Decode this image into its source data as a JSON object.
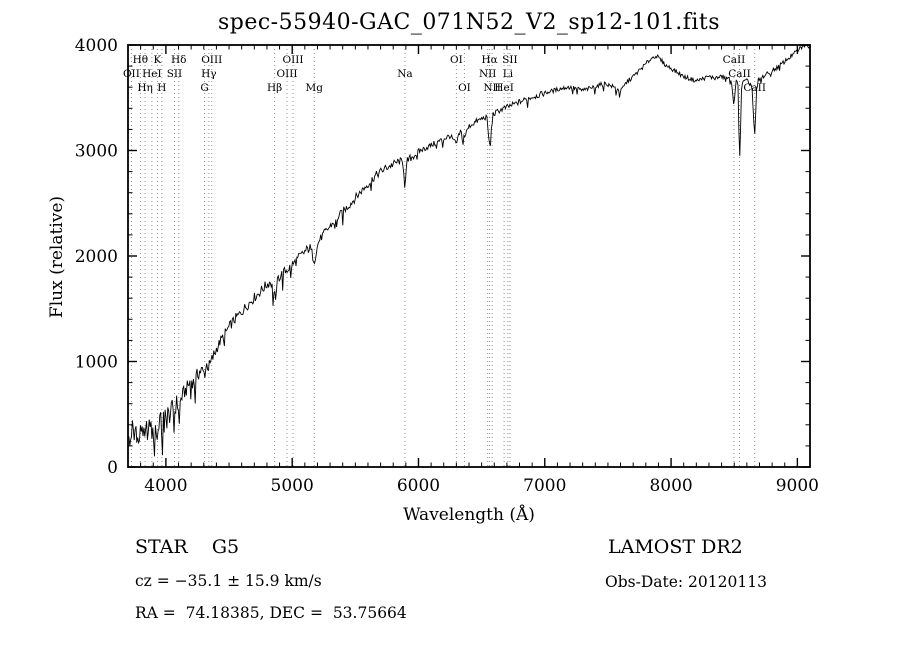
{
  "chart_data": {
    "type": "line",
    "title": "spec-55940-GAC_071N52_V2_sp12-101.fits",
    "xlabel": "Wavelength (Å)",
    "ylabel": "Flux (relative)",
    "xlim": [
      3700,
      9100
    ],
    "ylim": [
      0,
      4000
    ],
    "xticks": [
      4000,
      5000,
      6000,
      7000,
      8000,
      9000
    ],
    "yticks": [
      0,
      1000,
      2000,
      3000,
      4000
    ],
    "minor_x_step": 100,
    "minor_y_step": 200,
    "grid": false,
    "line_color": "#000000",
    "marker_line_color": "#909090",
    "spectral_lines": [
      {
        "label": "Hθ",
        "wavelength": 3798,
        "row": 0
      },
      {
        "label": "K",
        "wavelength": 3933,
        "row": 0
      },
      {
        "label": "Hδ",
        "wavelength": 4102,
        "row": 0
      },
      {
        "label": "OIII",
        "wavelength": 4363,
        "row": 0
      },
      {
        "label": "OIII",
        "wavelength": 5007,
        "row": 0
      },
      {
        "label": "OI",
        "wavelength": 6300,
        "row": 0
      },
      {
        "label": "Hα",
        "wavelength": 6563,
        "row": 0
      },
      {
        "label": "SII",
        "wavelength": 6724,
        "row": 0
      },
      {
        "label": "CaII",
        "wavelength": 8498,
        "row": 0
      },
      {
        "label": "OII",
        "wavelength": 3727,
        "row": 1
      },
      {
        "label": "HeI",
        "wavelength": 3889,
        "row": 1
      },
      {
        "label": "SII",
        "wavelength": 4068,
        "row": 1
      },
      {
        "label": "Hγ",
        "wavelength": 4340,
        "row": 1
      },
      {
        "label": "OIII",
        "wavelength": 4959,
        "row": 1
      },
      {
        "label": "Na",
        "wavelength": 5893,
        "row": 1
      },
      {
        "label": "NII",
        "wavelength": 6548,
        "row": 1
      },
      {
        "label": "Li",
        "wavelength": 6708,
        "row": 1
      },
      {
        "label": "CaII",
        "wavelength": 8542,
        "row": 1
      },
      {
        "label": "Hη",
        "wavelength": 3835,
        "row": 2
      },
      {
        "label": "H",
        "wavelength": 3968,
        "row": 2
      },
      {
        "label": "G",
        "wavelength": 4306,
        "row": 2
      },
      {
        "label": "Hβ",
        "wavelength": 4861,
        "row": 2
      },
      {
        "label": "Mg",
        "wavelength": 5175,
        "row": 2
      },
      {
        "label": "OI",
        "wavelength": 6364,
        "row": 2
      },
      {
        "label": "NII",
        "wavelength": 6583,
        "row": 2
      },
      {
        "label": "HeI",
        "wavelength": 6678,
        "row": 2
      },
      {
        "label": "CaII",
        "wavelength": 8662,
        "row": 2
      }
    ],
    "noise_regions": [
      [
        3700,
        4000,
        115
      ],
      [
        4000,
        4400,
        85
      ],
      [
        4400,
        5200,
        60
      ],
      [
        5200,
        6000,
        48
      ],
      [
        6000,
        7000,
        34
      ],
      [
        7000,
        9100,
        26
      ]
    ],
    "series": [
      {
        "name": "spectrum",
        "points": [
          [
            3700,
            340
          ],
          [
            3712,
            170
          ],
          [
            3724,
            300
          ],
          [
            3736,
            390
          ],
          [
            3748,
            240
          ],
          [
            3760,
            410
          ],
          [
            3772,
            300
          ],
          [
            3784,
            210
          ],
          [
            3798,
            330
          ],
          [
            3812,
            400
          ],
          [
            3825,
            290
          ],
          [
            3835,
            240
          ],
          [
            3848,
            380
          ],
          [
            3860,
            300
          ],
          [
            3875,
            430
          ],
          [
            3889,
            330
          ],
          [
            3900,
            280
          ],
          [
            3915,
            400
          ],
          [
            3933,
            260
          ],
          [
            3945,
            430
          ],
          [
            3955,
            480
          ],
          [
            3968,
            330
          ],
          [
            3980,
            470
          ],
          [
            3995,
            520
          ],
          [
            4010,
            540
          ],
          [
            4030,
            470
          ],
          [
            4050,
            580
          ],
          [
            4068,
            500
          ],
          [
            4085,
            620
          ],
          [
            4102,
            540
          ],
          [
            4120,
            650
          ],
          [
            4140,
            700
          ],
          [
            4160,
            730
          ],
          [
            4180,
            780
          ],
          [
            4200,
            830
          ],
          [
            4227,
            790
          ],
          [
            4250,
            880
          ],
          [
            4280,
            920
          ],
          [
            4306,
            880
          ],
          [
            4325,
            980
          ],
          [
            4340,
            940
          ],
          [
            4363,
            1010
          ],
          [
            4400,
            1120
          ],
          [
            4440,
            1210
          ],
          [
            4480,
            1290
          ],
          [
            4520,
            1360
          ],
          [
            4560,
            1420
          ],
          [
            4600,
            1470
          ],
          [
            4640,
            1530
          ],
          [
            4680,
            1580
          ],
          [
            4720,
            1630
          ],
          [
            4760,
            1680
          ],
          [
            4800,
            1730
          ],
          [
            4830,
            1760
          ],
          [
            4861,
            1620
          ],
          [
            4890,
            1790
          ],
          [
            4920,
            1830
          ],
          [
            4959,
            1870
          ],
          [
            5007,
            1920
          ],
          [
            5050,
            1980
          ],
          [
            5100,
            2040
          ],
          [
            5140,
            2080
          ],
          [
            5175,
            1960
          ],
          [
            5210,
            2140
          ],
          [
            5250,
            2210
          ],
          [
            5300,
            2280
          ],
          [
            5350,
            2350
          ],
          [
            5400,
            2420
          ],
          [
            5450,
            2480
          ],
          [
            5500,
            2550
          ],
          [
            5550,
            2620
          ],
          [
            5600,
            2680
          ],
          [
            5650,
            2750
          ],
          [
            5700,
            2800
          ],
          [
            5750,
            2840
          ],
          [
            5800,
            2870
          ],
          [
            5850,
            2900
          ],
          [
            5880,
            2880
          ],
          [
            5893,
            2640
          ],
          [
            5910,
            2900
          ],
          [
            5960,
            2950
          ],
          [
            6000,
            2990
          ],
          [
            6050,
            3020
          ],
          [
            6100,
            3050
          ],
          [
            6150,
            3080
          ],
          [
            6200,
            3110
          ],
          [
            6250,
            3140
          ],
          [
            6300,
            3060
          ],
          [
            6330,
            3180
          ],
          [
            6364,
            3130
          ],
          [
            6400,
            3230
          ],
          [
            6450,
            3270
          ],
          [
            6500,
            3300
          ],
          [
            6540,
            3320
          ],
          [
            6563,
            3050
          ],
          [
            6590,
            3340
          ],
          [
            6640,
            3380
          ],
          [
            6700,
            3410
          ],
          [
            6760,
            3440
          ],
          [
            6820,
            3470
          ],
          [
            6880,
            3500
          ],
          [
            6940,
            3520
          ],
          [
            7000,
            3545
          ],
          [
            7060,
            3565
          ],
          [
            7120,
            3585
          ],
          [
            7180,
            3600
          ],
          [
            7240,
            3590
          ],
          [
            7300,
            3570
          ],
          [
            7360,
            3590
          ],
          [
            7420,
            3615
          ],
          [
            7480,
            3635
          ],
          [
            7540,
            3605
          ],
          [
            7600,
            3560
          ],
          [
            7650,
            3650
          ],
          [
            7700,
            3700
          ],
          [
            7750,
            3760
          ],
          [
            7800,
            3820
          ],
          [
            7840,
            3870
          ],
          [
            7880,
            3900
          ],
          [
            7920,
            3855
          ],
          [
            7960,
            3805
          ],
          [
            8000,
            3780
          ],
          [
            8050,
            3740
          ],
          [
            8100,
            3700
          ],
          [
            8150,
            3680
          ],
          [
            8200,
            3660
          ],
          [
            8250,
            3680
          ],
          [
            8300,
            3700
          ],
          [
            8350,
            3685
          ],
          [
            8400,
            3700
          ],
          [
            8450,
            3690
          ],
          [
            8480,
            3650
          ],
          [
            8498,
            3420
          ],
          [
            8515,
            3655
          ],
          [
            8530,
            3635
          ],
          [
            8542,
            2870
          ],
          [
            8560,
            3645
          ],
          [
            8600,
            3660
          ],
          [
            8640,
            3615
          ],
          [
            8662,
            3110
          ],
          [
            8680,
            3655
          ],
          [
            8720,
            3695
          ],
          [
            8760,
            3725
          ],
          [
            8800,
            3755
          ],
          [
            8850,
            3795
          ],
          [
            8900,
            3845
          ],
          [
            8950,
            3895
          ],
          [
            9000,
            3945
          ],
          [
            9050,
            3995
          ],
          [
            9100,
            3990
          ]
        ]
      }
    ]
  },
  "footer": {
    "class_label": "STAR    G5",
    "survey": "LAMOST DR2",
    "cz": "cz = −35.1 ± 15.9 km/s",
    "obs_date": "Obs-Date: 20120113",
    "ra_dec": "RA =  74.18385, DEC =  53.75664"
  }
}
